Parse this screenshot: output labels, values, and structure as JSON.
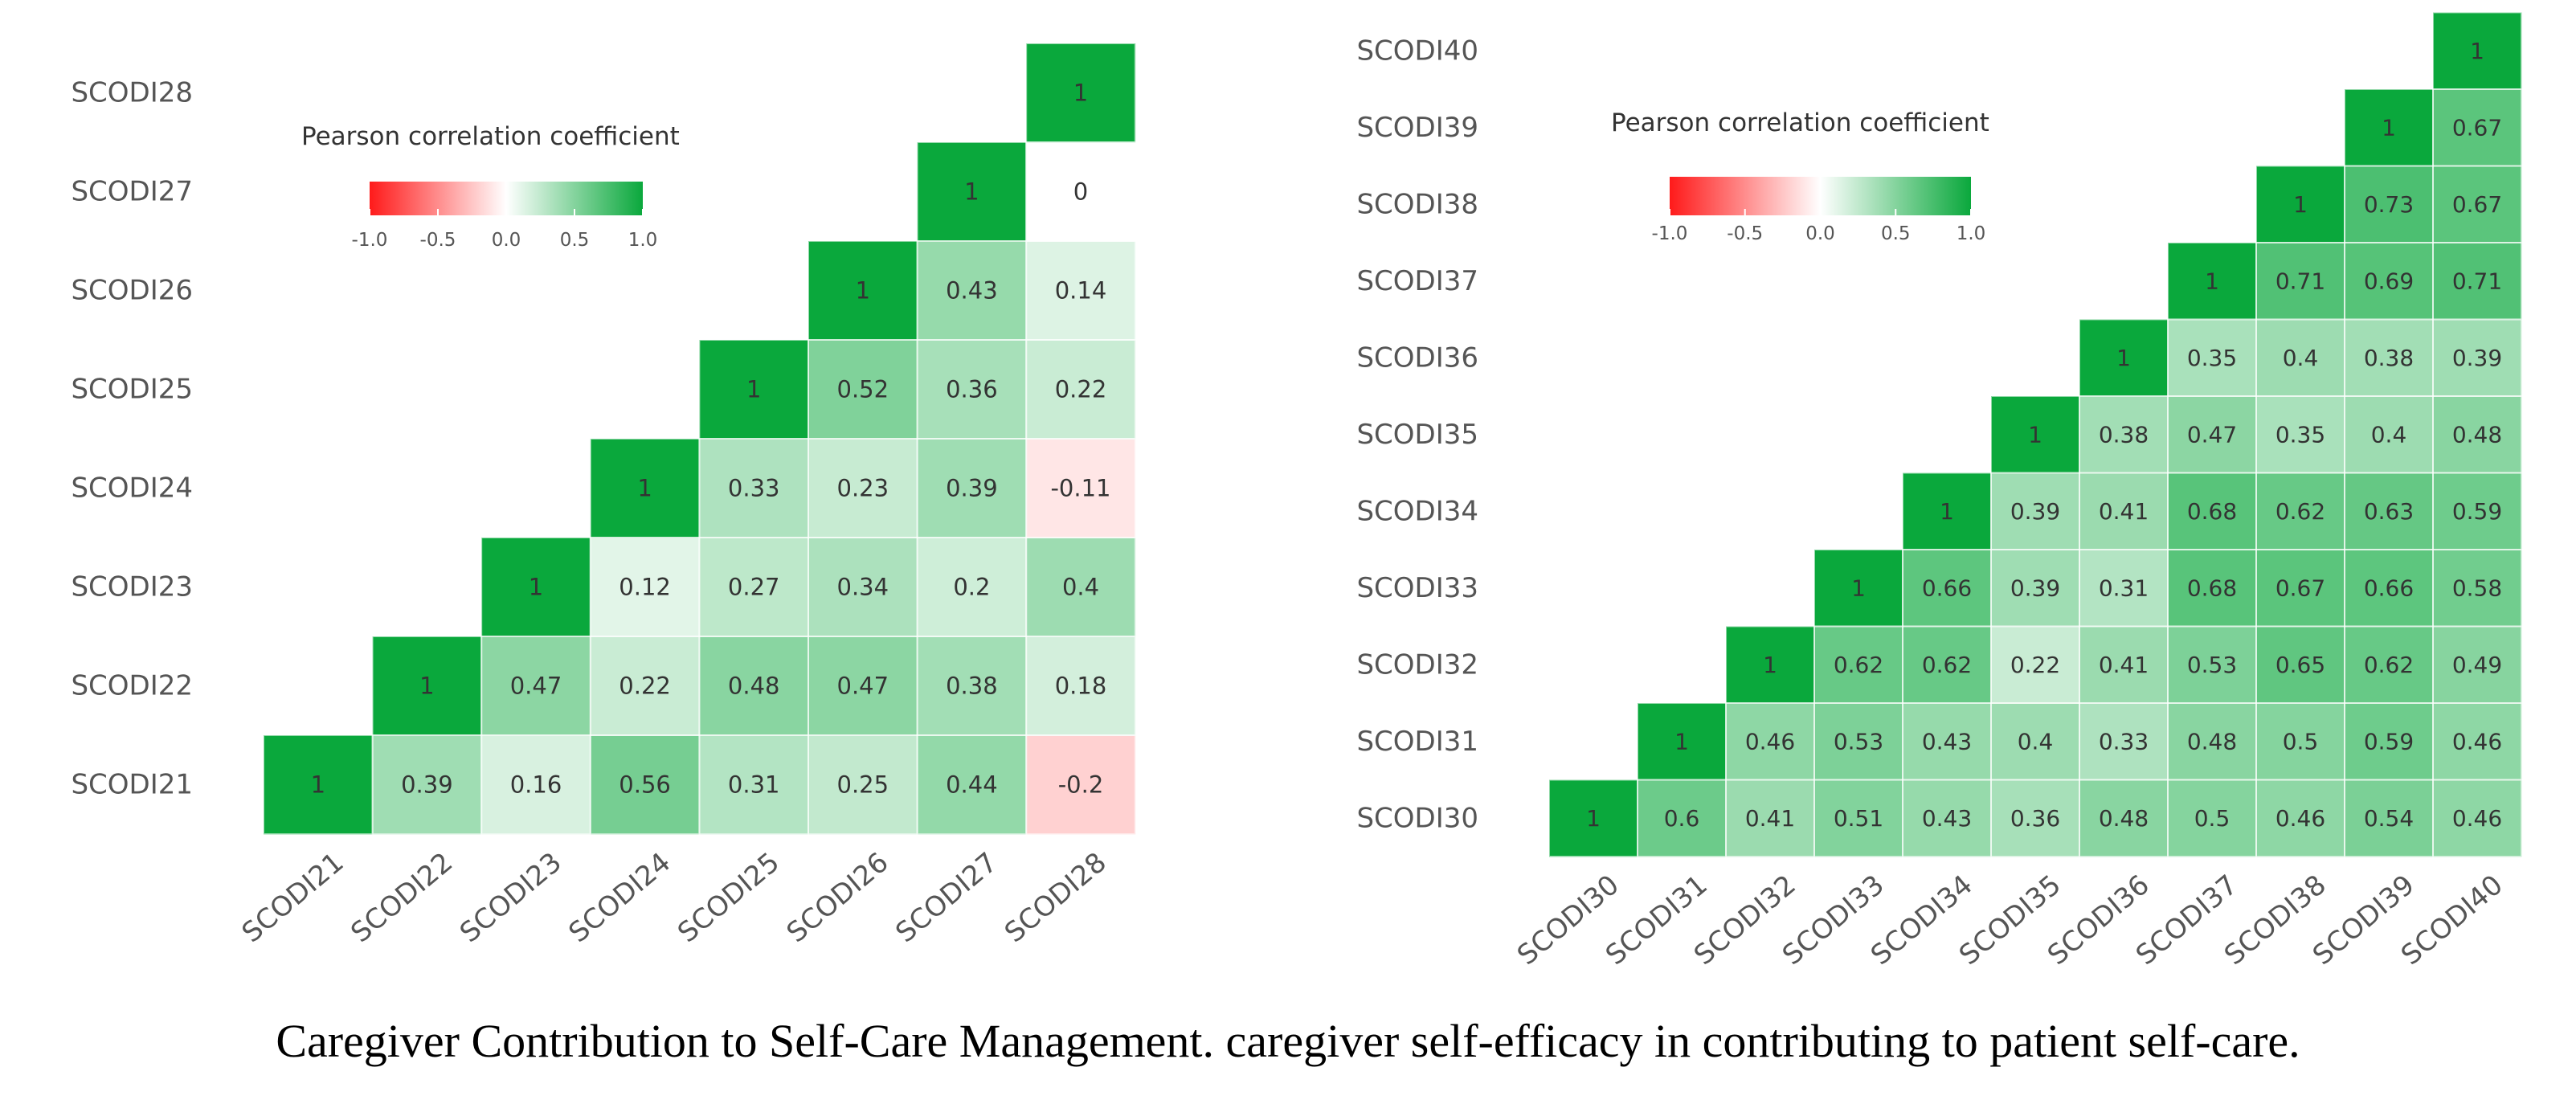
{
  "caption": "Caregiver Contribution to Self-Care Management. caregiver self-efficacy in contributing to patient self-care.",
  "colors": {
    "negative": "#ff1a1a",
    "neutral": "#ffffff",
    "positive": "#0aa83c",
    "text": "#333333",
    "axis_text": "#555555"
  },
  "chart_data": [
    {
      "type": "heatmap",
      "title": "",
      "legend_title": "Pearson correlation coefficient",
      "legend_ticks": [
        "-1.0",
        "-0.5",
        "0.0",
        "0.5",
        "1.0"
      ],
      "legend_range": [
        -1,
        1
      ],
      "legend_position": "top-left",
      "x_labels": [
        "SCODI21",
        "SCODI22",
        "SCODI23",
        "SCODI24",
        "SCODI25",
        "SCODI26",
        "SCODI27",
        "SCODI28"
      ],
      "y_labels": [
        "SCODI21",
        "SCODI22",
        "SCODI23",
        "SCODI24",
        "SCODI25",
        "SCODI26",
        "SCODI27",
        "SCODI28"
      ],
      "matrix": [
        [
          1,
          0.39,
          0.16,
          0.56,
          0.31,
          0.25,
          0.44,
          -0.2
        ],
        [
          null,
          1,
          0.47,
          0.22,
          0.48,
          0.47,
          0.38,
          0.18
        ],
        [
          null,
          null,
          1,
          0.12,
          0.27,
          0.34,
          0.2,
          0.4
        ],
        [
          null,
          null,
          null,
          1,
          0.33,
          0.23,
          0.39,
          -0.11
        ],
        [
          null,
          null,
          null,
          null,
          1,
          0.52,
          0.36,
          0.22
        ],
        [
          null,
          null,
          null,
          null,
          null,
          1,
          0.43,
          0.14
        ],
        [
          null,
          null,
          null,
          null,
          null,
          null,
          1,
          0
        ],
        [
          null,
          null,
          null,
          null,
          null,
          null,
          null,
          1
        ]
      ]
    },
    {
      "type": "heatmap",
      "title": "",
      "legend_title": "Pearson correlation coefficient",
      "legend_ticks": [
        "-1.0",
        "-0.5",
        "0.0",
        "0.5",
        "1.0"
      ],
      "legend_range": [
        -1,
        1
      ],
      "legend_position": "top-left",
      "x_labels": [
        "SCODI30",
        "SCODI31",
        "SCODI32",
        "SCODI33",
        "SCODI34",
        "SCODI35",
        "SCODI36",
        "SCODI37",
        "SCODI38",
        "SCODI39",
        "SCODI40"
      ],
      "y_labels": [
        "SCODI30",
        "SCODI31",
        "SCODI32",
        "SCODI33",
        "SCODI34",
        "SCODI35",
        "SCODI36",
        "SCODI37",
        "SCODI38",
        "SCODI39",
        "SCODI40"
      ],
      "matrix": [
        [
          1,
          0.6,
          0.41,
          0.51,
          0.43,
          0.36,
          0.48,
          0.5,
          0.46,
          0.54,
          0.46
        ],
        [
          null,
          1,
          0.46,
          0.53,
          0.43,
          0.4,
          0.33,
          0.48,
          0.5,
          0.59,
          0.46
        ],
        [
          null,
          null,
          1,
          0.62,
          0.62,
          0.22,
          0.41,
          0.53,
          0.65,
          0.62,
          0.49
        ],
        [
          null,
          null,
          null,
          1,
          0.66,
          0.39,
          0.31,
          0.68,
          0.67,
          0.66,
          0.58
        ],
        [
          null,
          null,
          null,
          null,
          1,
          0.39,
          0.41,
          0.68,
          0.62,
          0.63,
          0.59
        ],
        [
          null,
          null,
          null,
          null,
          null,
          1,
          0.38,
          0.47,
          0.35,
          0.4,
          0.48
        ],
        [
          null,
          null,
          null,
          null,
          null,
          null,
          1,
          0.35,
          0.4,
          0.38,
          0.39
        ],
        [
          null,
          null,
          null,
          null,
          null,
          null,
          null,
          1,
          0.71,
          0.69,
          0.71
        ],
        [
          null,
          null,
          null,
          null,
          null,
          null,
          null,
          null,
          1,
          0.73,
          0.67
        ],
        [
          null,
          null,
          null,
          null,
          null,
          null,
          null,
          null,
          null,
          1,
          0.67
        ],
        [
          null,
          null,
          null,
          null,
          null,
          null,
          null,
          null,
          null,
          null,
          1
        ]
      ]
    }
  ]
}
